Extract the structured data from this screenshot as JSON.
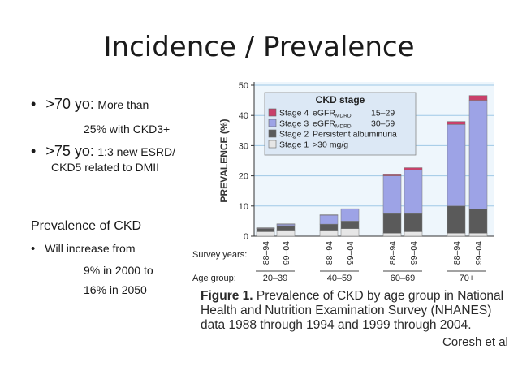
{
  "slide": {
    "title": "Incidence / Prevalence",
    "bullets": [
      {
        "head": ">70 yo:",
        "text": "More than",
        "cont": "25% with CKD3+"
      },
      {
        "head": ">75 yo:",
        "text": "1:3 new ESRD/",
        "cont": "CKD5 related to DMII"
      }
    ],
    "section_title": "Prevalence of CKD",
    "sub_bullet": "Will increase  from",
    "sub_lines": [
      "9% in 2000 to",
      "16% in 2050"
    ]
  },
  "figure": {
    "label": "Figure 1.",
    "caption_line1": "Prevalence of CKD by age group in National",
    "caption_line2": "Health and Nutrition Examination  Survey  (NHANES)",
    "caption_line3": "data  1988  through  1994  and  1999  through  2004.",
    "author": "Coresh et al",
    "survey_years_label": "Survey years:",
    "age_group_label": "Age group:"
  },
  "chart_data": {
    "type": "bar",
    "stacked": true,
    "ylabel": "PREVALENCE (%)",
    "ylim": [
      0,
      50
    ],
    "yticks": [
      0,
      10,
      20,
      30,
      40,
      50
    ],
    "grid": true,
    "legend_title": "CKD stage",
    "legend_position": "top",
    "groups": [
      "20–39",
      "40–59",
      "60–69",
      "70+"
    ],
    "categories": [
      "88–94",
      "99–04",
      "88–94",
      "99–04",
      "88–94",
      "99–04",
      "88–94",
      "99–04"
    ],
    "series": [
      {
        "name": "Stage 1",
        "desc": ">30 mg/g",
        "color": "#e6e6e6",
        "values": [
          1.5,
          2.0,
          2.0,
          2.5,
          1.0,
          1.5,
          1.0,
          1.0
        ]
      },
      {
        "name": "Stage 2",
        "desc": "Persistent albuminuria",
        "color": "#5a5a5a",
        "values": [
          1.0,
          1.5,
          2.0,
          2.5,
          6.5,
          6.0,
          9.0,
          8.0
        ]
      },
      {
        "name": "Stage 3",
        "desc": "30–59",
        "color": "#9da3e6",
        "values": [
          0.2,
          0.5,
          3.0,
          4.0,
          12.5,
          14.5,
          27.0,
          36.0
        ]
      },
      {
        "name": "Stage 4",
        "desc": "15–29",
        "color": "#c9406a",
        "values": [
          0.1,
          0.1,
          0.1,
          0.1,
          0.6,
          0.7,
          1.0,
          1.6
        ]
      }
    ]
  }
}
